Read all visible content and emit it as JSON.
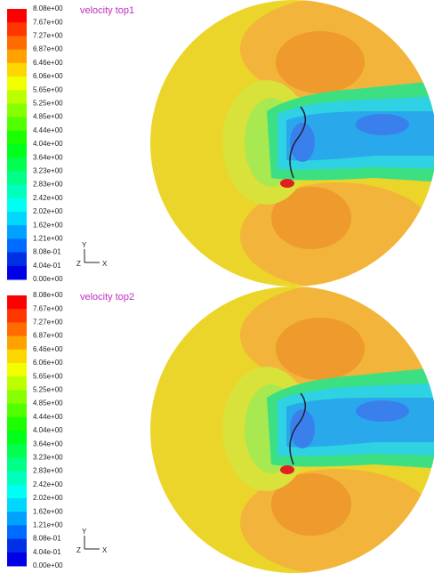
{
  "panels": [
    {
      "title": "velocity top1",
      "colorbar": [
        "8.08e+00",
        "7.67e+00",
        "7.27e+00",
        "6.87e+00",
        "6.46e+00",
        "6.06e+00",
        "5.65e+00",
        "5.25e+00",
        "4.85e+00",
        "4.44e+00",
        "4.04e+00",
        "3.64e+00",
        "3.23e+00",
        "2.83e+00",
        "2.42e+00",
        "2.02e+00",
        "1.62e+00",
        "1.21e+00",
        "8.08e-01",
        "4.04e-01",
        "0.00e+00"
      ],
      "axes": {
        "y": "Y",
        "z": "Z",
        "x": "X"
      }
    },
    {
      "title": "velocity top2",
      "colorbar": [
        "8.08e+00",
        "7.67e+00",
        "7.27e+00",
        "6.87e+00",
        "6.46e+00",
        "6.06e+00",
        "5.65e+00",
        "5.25e+00",
        "4.85e+00",
        "4.44e+00",
        "4.04e+00",
        "3.64e+00",
        "3.23e+00",
        "2.83e+00",
        "2.42e+00",
        "2.02e+00",
        "1.62e+00",
        "1.21e+00",
        "8.08e-01",
        "4.04e-01",
        "0.00e+00"
      ],
      "axes": {
        "y": "Y",
        "z": "Z",
        "x": "X"
      }
    }
  ]
}
